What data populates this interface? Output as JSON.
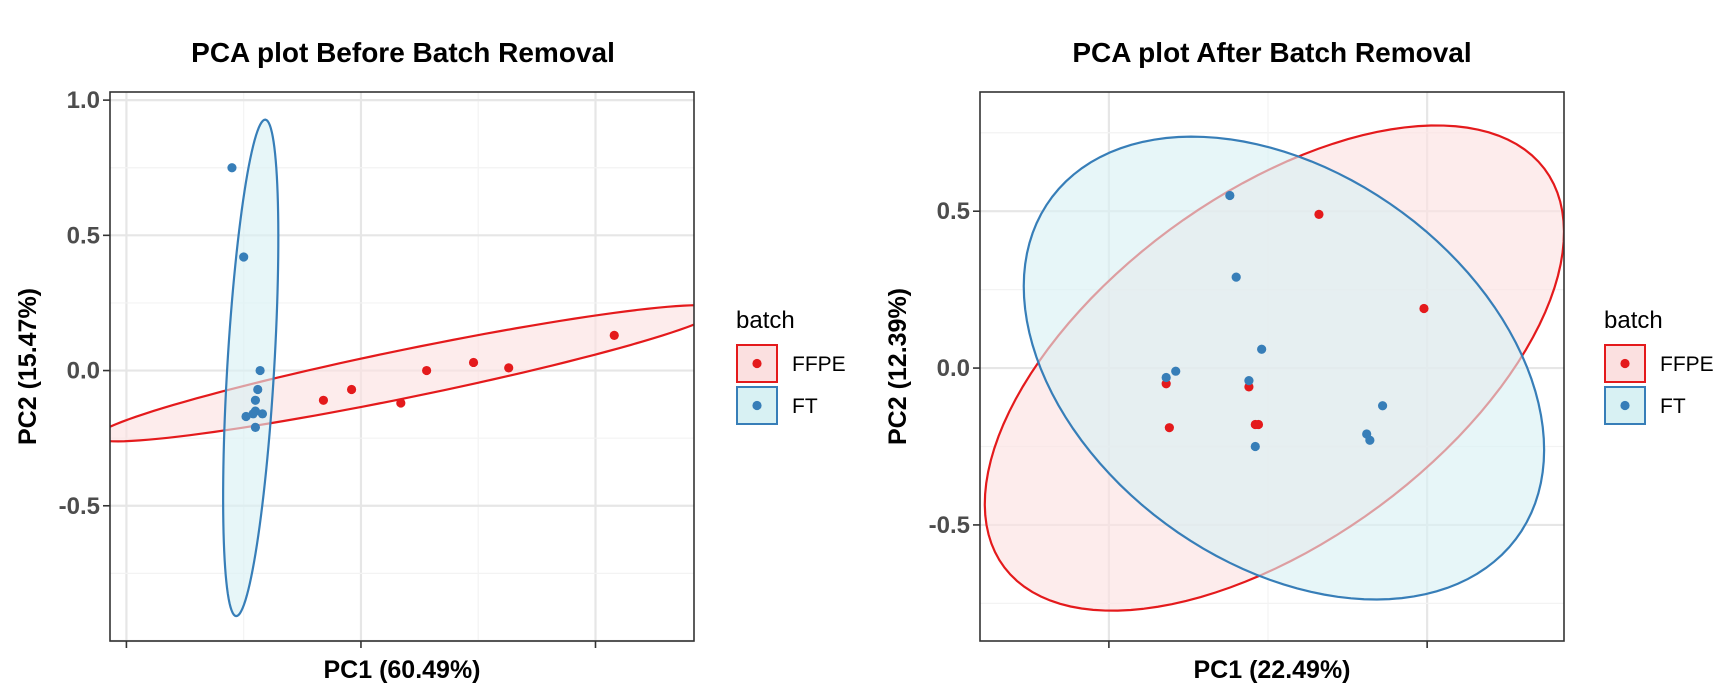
{
  "chart_data": [
    {
      "type": "scatter",
      "title": "PCA plot Before Batch Removal",
      "xlabel": "PC1 (60.49%)",
      "ylabel": "PC2 (15.47%)",
      "xlim": [
        -0.57,
        1.92
      ],
      "ylim": [
        -1.0,
        1.03
      ],
      "xticks": [
        -0.5,
        0.5,
        1.5
      ],
      "xtick_labels": [
        "",
        "",
        ""
      ],
      "yticks": [
        1.0,
        0.5,
        0.0,
        -0.5
      ],
      "ytick_labels": [
        "1.0",
        "0.5",
        "0.0",
        "-0.5"
      ],
      "grid": true,
      "legend": {
        "title": "batch",
        "position": "right"
      },
      "series": [
        {
          "name": "FFPE",
          "color": "#e41a1c",
          "fill": "#fbe0e0",
          "points": [
            [
              0.34,
              -0.11
            ],
            [
              0.46,
              -0.07
            ],
            [
              0.67,
              -0.12
            ],
            [
              0.78,
              0.0
            ],
            [
              0.98,
              0.03
            ],
            [
              1.13,
              0.01
            ],
            [
              1.58,
              0.13
            ]
          ],
          "ellipse": {
            "center": [
              0.7,
              -0.01
            ],
            "rx": 1.35,
            "ry": 0.089,
            "angle_deg": 10.07
          }
        },
        {
          "name": "FT",
          "color": "#377eb8",
          "fill": "#d8f1f3",
          "points": [
            [
              -0.05,
              0.75
            ],
            [
              0.0,
              0.42
            ],
            [
              0.07,
              0.0
            ],
            [
              0.06,
              -0.07
            ],
            [
              0.05,
              -0.11
            ],
            [
              0.05,
              -0.15
            ],
            [
              0.04,
              -0.16
            ],
            [
              0.08,
              -0.16
            ],
            [
              0.01,
              -0.17
            ],
            [
              0.05,
              -0.21
            ]
          ],
          "ellipse": {
            "center": [
              0.03,
              0.01
            ],
            "rx": 0.92,
            "ry": 0.1,
            "angle_deg": 86.11
          }
        }
      ]
    },
    {
      "type": "scatter",
      "title": "PCA plot After Batch Removal",
      "xlabel": "PC1 (22.49%)",
      "ylabel": "PC2 (12.39%)",
      "xlim": [
        -0.405,
        1.43
      ],
      "ylim": [
        -0.87,
        0.88
      ],
      "xticks": [
        0.0,
        1.0
      ],
      "xtick_labels": [
        "",
        ""
      ],
      "yticks": [
        0.5,
        0.0,
        -0.5
      ],
      "ytick_labels": [
        "0.5",
        "0.0",
        "-0.5"
      ],
      "grid": true,
      "legend": {
        "title": "batch",
        "position": "right"
      },
      "series": [
        {
          "name": "FFPE",
          "color": "#e41a1c",
          "fill": "#fbe0e0",
          "points": [
            [
              0.66,
              0.49
            ],
            [
              0.99,
              0.19
            ],
            [
              0.18,
              -0.05
            ],
            [
              0.44,
              -0.06
            ],
            [
              0.46,
              -0.18
            ],
            [
              0.47,
              -0.18
            ],
            [
              0.19,
              -0.19
            ]
          ],
          "ellipse": {
            "center": [
              0.52,
              0.0
            ],
            "rx": 1.06,
            "ry": 0.55,
            "angle_deg": 36.87
          }
        },
        {
          "name": "FT",
          "color": "#377eb8",
          "fill": "#d8f1f3",
          "points": [
            [
              0.38,
              0.55
            ],
            [
              0.4,
              0.29
            ],
            [
              0.48,
              0.06
            ],
            [
              0.21,
              -0.01
            ],
            [
              0.18,
              -0.03
            ],
            [
              0.44,
              -0.04
            ],
            [
              0.86,
              -0.12
            ],
            [
              0.81,
              -0.21
            ],
            [
              0.82,
              -0.23
            ],
            [
              0.46,
              -0.25
            ]
          ],
          "ellipse": {
            "center": [
              0.55,
              0.0
            ],
            "rx": 0.91,
            "ry": 0.62,
            "angle_deg": -36.87
          }
        }
      ]
    }
  ]
}
